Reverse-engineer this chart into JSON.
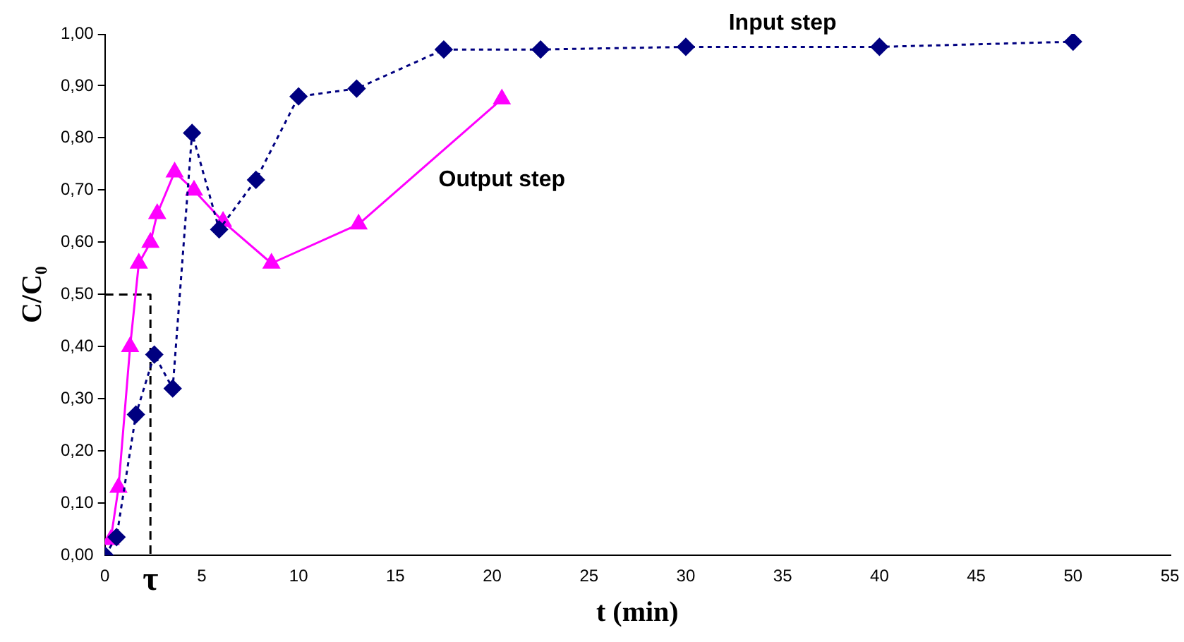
{
  "chart_data": {
    "type": "line",
    "xlabel": "t (min)",
    "ylabel": "C/C₀",
    "xlim": [
      0,
      55
    ],
    "xticks": [
      0,
      5,
      10,
      15,
      20,
      25,
      30,
      35,
      40,
      45,
      50,
      55
    ],
    "ylim": [
      0,
      1
    ],
    "yticks": [
      {
        "value": 0,
        "label": "0,00"
      },
      {
        "value": 0.1,
        "label": "0,10"
      },
      {
        "value": 0.2,
        "label": "0,20"
      },
      {
        "value": 0.3,
        "label": "0,30"
      },
      {
        "value": 0.4,
        "label": "0,40"
      },
      {
        "value": 0.5,
        "label": "0,50"
      },
      {
        "value": 0.6,
        "label": "0,60"
      },
      {
        "value": 0.7,
        "label": "0,70"
      },
      {
        "value": 0.8,
        "label": "0,80"
      },
      {
        "value": 0.9,
        "label": "0,90"
      },
      {
        "value": 1,
        "label": "1,00"
      }
    ],
    "grid": false,
    "legend": false,
    "series": [
      {
        "name": "Input step",
        "color": "#000080",
        "marker": "diamond",
        "line_style": "dotted",
        "x": [
          0,
          0.6,
          1.6,
          2.55,
          3.5,
          4.5,
          5.9,
          7.8,
          10,
          13,
          17.5,
          22.5,
          30,
          40,
          50
        ],
        "values": [
          0,
          0.035,
          0.27,
          0.385,
          0.32,
          0.81,
          0.625,
          0.72,
          0.88,
          0.895,
          0.97,
          0.97,
          0.975,
          0.975,
          0.985
        ]
      },
      {
        "name": "Output step",
        "color": "#ff00ff",
        "marker": "triangle",
        "line_style": "solid",
        "x": [
          0.3,
          0.7,
          1.3,
          1.75,
          2.35,
          2.7,
          3.6,
          4.6,
          6.1,
          8.6,
          13.1,
          20.5
        ],
        "values": [
          0.03,
          0.13,
          0.4,
          0.56,
          0.6,
          0.655,
          0.735,
          0.7,
          0.64,
          0.56,
          0.635,
          0.875
        ]
      },
      {
        "color": "#000000",
        "marker": "none",
        "line_style": "dashed",
        "x": [
          0,
          2.35,
          2.35
        ],
        "values": [
          0.5,
          0.5,
          0
        ]
      }
    ],
    "annotations": [
      {
        "text": "τ",
        "x": 2.35,
        "y": 0
      }
    ]
  }
}
